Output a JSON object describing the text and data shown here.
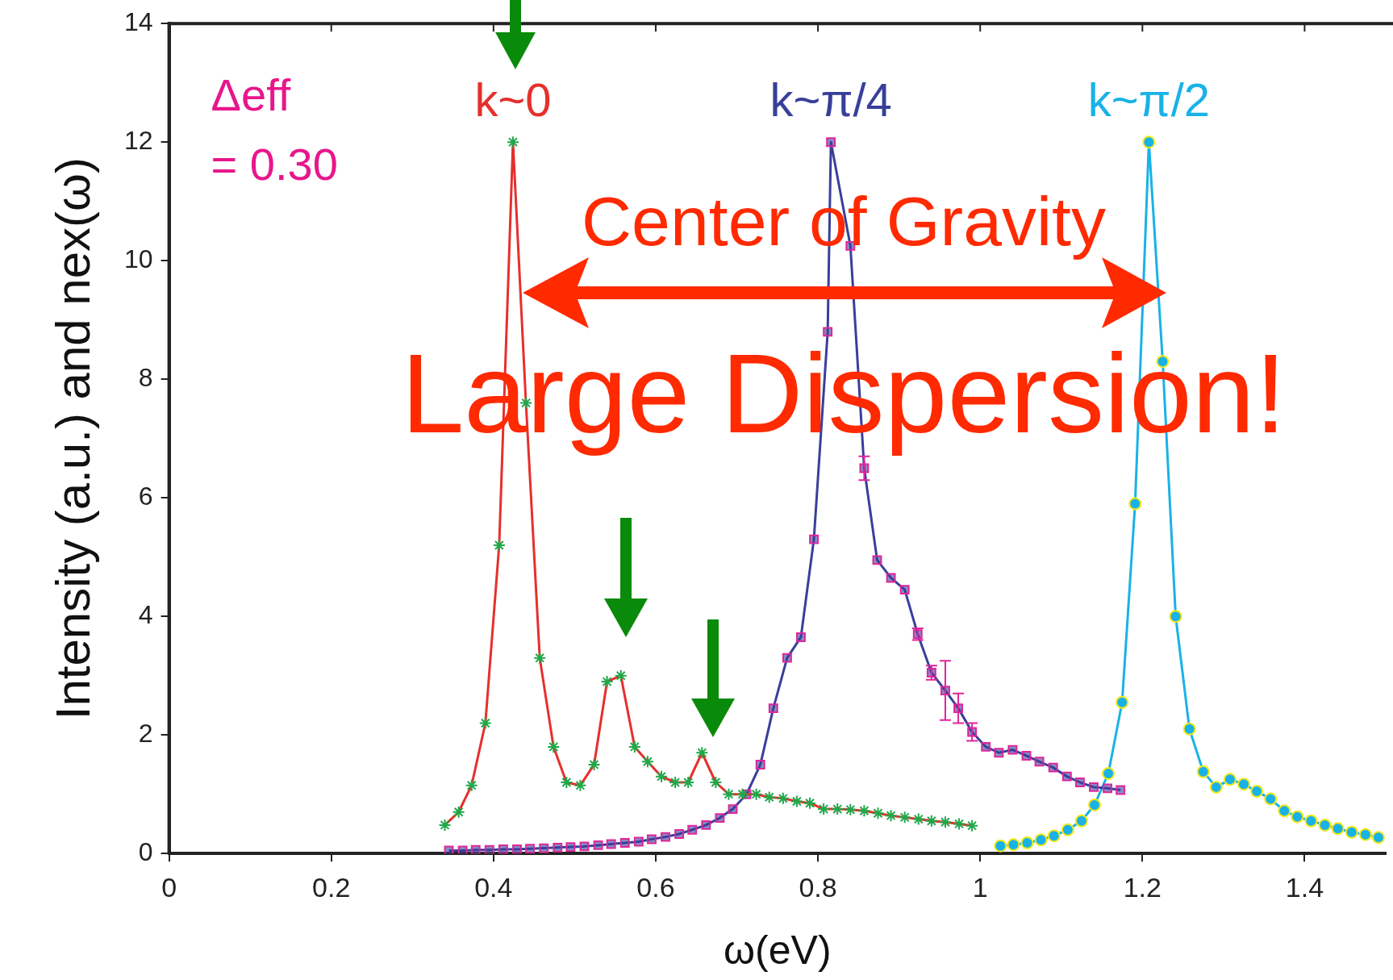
{
  "chart_data": {
    "type": "line",
    "xlabel": "ω(eV)",
    "ylabel": "Intensity (a.u.) and nex(ω)",
    "xlim": [
      0,
      1.5
    ],
    "xticks": [
      0,
      0.2,
      0.4,
      0.6,
      0.8,
      1,
      1.2,
      1.4
    ],
    "ylim": [
      0,
      14
    ],
    "yticks": [
      0,
      2,
      4,
      6,
      8,
      10,
      12,
      14
    ],
    "grid": false,
    "legend": false,
    "line_style": "solid",
    "annotations": [
      "Δeff = 0.30",
      "Center of Gravity",
      "Large Dispersion!"
    ],
    "series": [
      {
        "name": "k~0",
        "color": "#e5302c",
        "marker": "cross",
        "x": [
          0.34,
          0.357,
          0.373,
          0.39,
          0.407,
          0.424,
          0.44,
          0.457,
          0.474,
          0.49,
          0.507,
          0.524,
          0.54,
          0.557,
          0.574,
          0.59,
          0.607,
          0.624,
          0.64,
          0.657,
          0.674,
          0.69,
          0.707,
          0.724,
          0.74,
          0.757,
          0.774,
          0.79,
          0.807,
          0.824,
          0.84,
          0.857,
          0.874,
          0.89,
          0.907,
          0.924,
          0.94,
          0.957,
          0.974,
          0.99
        ],
        "values": [
          0.48,
          0.7,
          1.15,
          2.2,
          5.2,
          12.0,
          7.6,
          3.3,
          1.8,
          1.2,
          1.15,
          1.5,
          2.9,
          3.0,
          1.8,
          1.55,
          1.3,
          1.2,
          1.2,
          1.7,
          1.2,
          1.0,
          1.0,
          1.0,
          0.95,
          0.93,
          0.88,
          0.85,
          0.75,
          0.75,
          0.74,
          0.72,
          0.68,
          0.64,
          0.61,
          0.58,
          0.55,
          0.53,
          0.5,
          0.47
        ]
      },
      {
        "name": "k~π/4",
        "color": "#383f9a",
        "marker": "square",
        "x": [
          0.345,
          0.362,
          0.378,
          0.395,
          0.412,
          0.429,
          0.445,
          0.462,
          0.479,
          0.495,
          0.512,
          0.529,
          0.545,
          0.562,
          0.579,
          0.595,
          0.612,
          0.629,
          0.645,
          0.662,
          0.679,
          0.695,
          0.712,
          0.729,
          0.745,
          0.762,
          0.779,
          0.795,
          0.812,
          0.816,
          0.84,
          0.857,
          0.873,
          0.89,
          0.907,
          0.923,
          0.94,
          0.957,
          0.973,
          0.99,
          1.007,
          1.023,
          1.04,
          1.057,
          1.073,
          1.09,
          1.107,
          1.123,
          1.14,
          1.157,
          1.173
        ],
        "values": [
          0.05,
          0.05,
          0.06,
          0.06,
          0.07,
          0.07,
          0.08,
          0.09,
          0.1,
          0.11,
          0.12,
          0.14,
          0.16,
          0.18,
          0.2,
          0.24,
          0.28,
          0.33,
          0.4,
          0.48,
          0.6,
          0.75,
          1.0,
          1.5,
          2.45,
          3.3,
          3.65,
          5.3,
          8.8,
          12.0,
          10.25,
          6.5,
          4.95,
          4.65,
          4.45,
          3.7,
          3.05,
          2.75,
          2.45,
          2.05,
          1.8,
          1.7,
          1.75,
          1.65,
          1.55,
          1.45,
          1.3,
          1.2,
          1.12,
          1.1,
          1.07
        ],
        "errors": [
          null,
          null,
          null,
          null,
          null,
          null,
          null,
          null,
          null,
          null,
          null,
          null,
          null,
          null,
          null,
          null,
          null,
          null,
          null,
          null,
          null,
          null,
          null,
          null,
          null,
          null,
          null,
          null,
          null,
          null,
          null,
          0.2,
          null,
          null,
          null,
          0.1,
          0.12,
          0.5,
          0.25,
          0.15,
          null,
          null,
          null,
          null,
          null,
          null,
          null,
          null,
          null,
          null,
          null
        ]
      },
      {
        "name": "k~π/2",
        "color": "#19b2e6",
        "marker": "circle",
        "x": [
          1.025,
          1.041,
          1.058,
          1.075,
          1.091,
          1.108,
          1.125,
          1.141,
          1.158,
          1.175,
          1.191,
          1.208,
          1.225,
          1.241,
          1.258,
          1.275,
          1.291,
          1.308,
          1.325,
          1.341,
          1.358,
          1.375,
          1.391,
          1.408,
          1.425,
          1.441,
          1.458,
          1.475,
          1.491
        ],
        "values": [
          0.13,
          0.15,
          0.18,
          0.23,
          0.3,
          0.4,
          0.55,
          0.82,
          1.35,
          2.55,
          5.9,
          12.0,
          8.3,
          4.0,
          2.1,
          1.38,
          1.12,
          1.25,
          1.17,
          1.05,
          0.92,
          0.72,
          0.62,
          0.55,
          0.48,
          0.42,
          0.36,
          0.32,
          0.27
        ]
      }
    ]
  }
}
